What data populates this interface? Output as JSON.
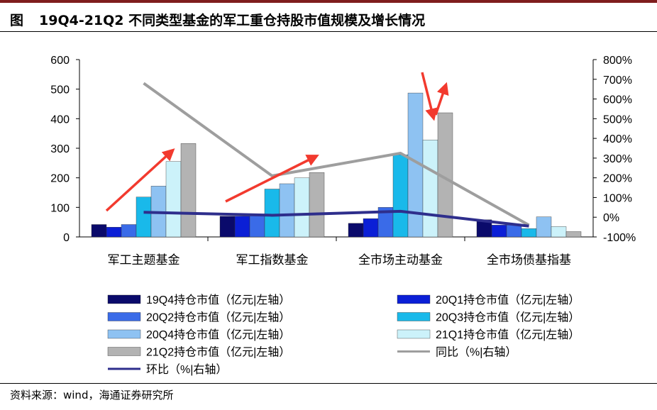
{
  "header": {
    "figure_label": "图",
    "title": "19Q4-21Q2 不同类型基金的军工重仓持股市值规模及增长情况"
  },
  "footer": {
    "source": "资料来源：wind，海通证券研究所"
  },
  "colors": {
    "rule": "#000000",
    "arrow": "#f23a2e"
  },
  "chart_data": {
    "type": "bar",
    "title": "19Q4-21Q2 不同类型基金的军工重仓持股市值规模及增长情况",
    "categories": [
      "军工主题基金",
      "军工指数基金",
      "全市场主动基金",
      "全市场债基指基"
    ],
    "y_left": {
      "range": [
        0,
        600
      ],
      "ticks": [
        "0",
        "100",
        "200",
        "300",
        "400",
        "500",
        "600"
      ],
      "unit": "亿元"
    },
    "y_right": {
      "range": [
        -100,
        800
      ],
      "ticks": [
        "-100%",
        "0%",
        "100%",
        "200%",
        "300%",
        "400%",
        "500%",
        "600%",
        "700%",
        "800%"
      ],
      "unit": "%"
    },
    "series": [
      {
        "name": "19Q4持仓市值（亿元|左轴）",
        "type": "bar",
        "axis": "left",
        "color": "#0a0a6b",
        "values": [
          42,
          70,
          46,
          58
        ]
      },
      {
        "name": "20Q1持仓市值（亿元|左轴）",
        "type": "bar",
        "axis": "left",
        "color": "#0b1fd6",
        "values": [
          33,
          70,
          62,
          40
        ]
      },
      {
        "name": "20Q2持仓市值（亿元|左轴）",
        "type": "bar",
        "axis": "left",
        "color": "#3a6be8",
        "values": [
          42,
          72,
          100,
          40
        ]
      },
      {
        "name": "20Q3持仓市值（亿元|左轴）",
        "type": "bar",
        "axis": "left",
        "color": "#19b9ea",
        "values": [
          135,
          162,
          278,
          28
        ]
      },
      {
        "name": "20Q4持仓市值（亿元|左轴）",
        "type": "bar",
        "axis": "left",
        "color": "#8ec2f2",
        "values": [
          172,
          180,
          487,
          68
        ]
      },
      {
        "name": "21Q1持仓市值（亿元|左轴）",
        "type": "bar",
        "axis": "left",
        "color": "#ccf2fa",
        "values": [
          255,
          200,
          328,
          35
        ]
      },
      {
        "name": "21Q2持仓市值（亿元|左轴）",
        "type": "bar",
        "axis": "left",
        "color": "#b3b3b3",
        "values": [
          316,
          218,
          420,
          18
        ]
      },
      {
        "name": "同比（%|右轴）",
        "type": "line",
        "axis": "right",
        "color": "#9e9e9e",
        "values": [
          680,
          210,
          325,
          -40
        ]
      },
      {
        "name": "环比（%|右轴）",
        "type": "line",
        "axis": "right",
        "color": "#2e2e8c",
        "values": [
          25,
          10,
          30,
          -45
        ]
      }
    ],
    "legend": {
      "placement": "bottom",
      "columns": 2
    }
  }
}
